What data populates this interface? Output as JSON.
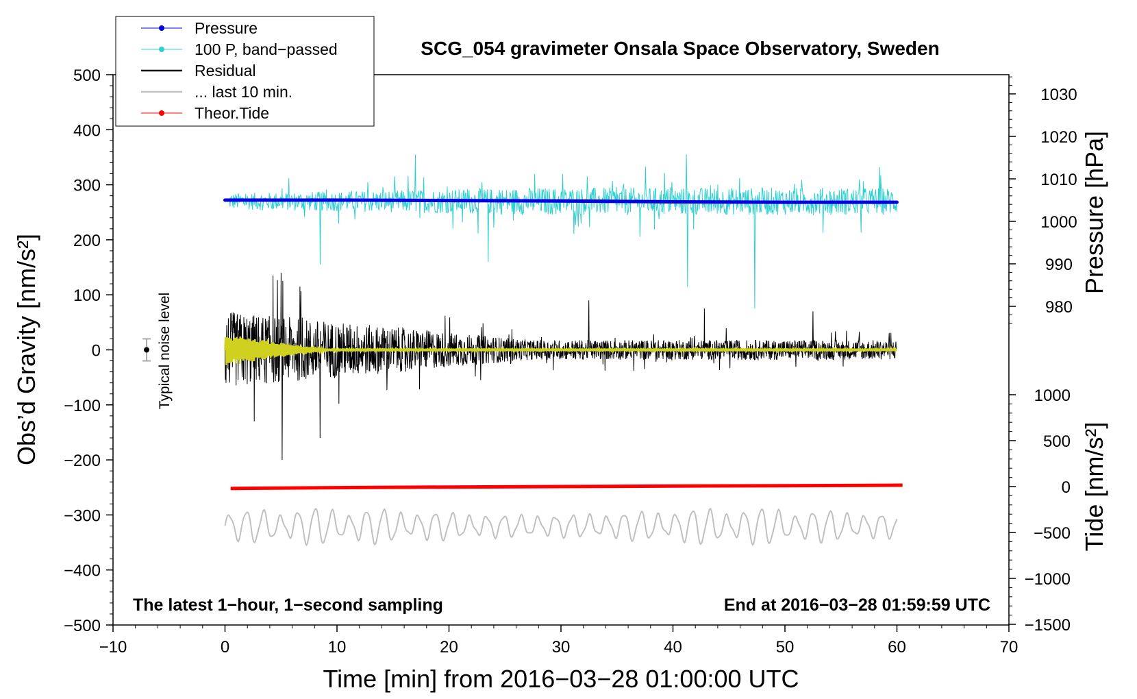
{
  "chart_data": {
    "type": "line",
    "title": "SCG_054 gravimeter Onsala Space Observatory, Sweden",
    "xlabel": "Time [min] from 2016−03−28 01:00:00 UTC",
    "ylabel_left": "Obs’d Gravity [nm/s²]",
    "ylabel_right_top": "Pressure [hPa]",
    "ylabel_right_bottom": "Tide [nm/s²]",
    "xlim": [
      -10,
      70
    ],
    "ylim_left": [
      -500,
      500
    ],
    "pressure_axis": {
      "visible_range": [
        976,
        1034
      ]
    },
    "tide_axis": {
      "visible_range": [
        -1500,
        1050
      ]
    },
    "x_ticks": [
      "−10",
      "0",
      "10",
      "20",
      "30",
      "40",
      "50",
      "60",
      "70"
    ],
    "x_tick_values": [
      -10,
      0,
      10,
      20,
      30,
      40,
      50,
      60,
      70
    ],
    "y_left_ticks": [
      "−500",
      "−400",
      "−300",
      "−200",
      "−100",
      "0",
      "100",
      "200",
      "300",
      "400",
      "500"
    ],
    "y_left_tick_values": [
      -500,
      -400,
      -300,
      -200,
      -100,
      0,
      100,
      200,
      300,
      400,
      500
    ],
    "pressure_ticks": [
      "980",
      "990",
      "1000",
      "1010",
      "1020",
      "1030"
    ],
    "pressure_tick_values": [
      980,
      990,
      1000,
      1010,
      1020,
      1030
    ],
    "tide_ticks": [
      "−1500",
      "−1000",
      "−500",
      "0",
      "500",
      "1000"
    ],
    "tide_tick_values": [
      -1500,
      -1000,
      -500,
      0,
      500,
      1000
    ],
    "legend": {
      "placement": "top-left",
      "entries": [
        {
          "label": "Pressure",
          "color": "#0000e0",
          "marker": true
        },
        {
          "label": "100 P, band−passed",
          "color": "#30d0d0",
          "marker": true
        },
        {
          "label": "Residual",
          "color": "#000000",
          "marker": false
        },
        {
          "label": "... last 10 min.",
          "color": "#c0c0c0",
          "marker": false
        },
        {
          "label": "Theor.Tide",
          "color": "#ff0000",
          "marker": true
        }
      ]
    },
    "annotations": {
      "bottom_left": "The latest 1−hour, 1−second sampling",
      "bottom_right": "End at 2016−03−28 01:59:59 UTC",
      "noise_label": "Typical noise level"
    },
    "noise_bar": {
      "x": -7,
      "center": 0,
      "half_range": 20
    },
    "series": [
      {
        "name": "Pressure",
        "axis": "pressure",
        "color": "#0000e0",
        "x": [
          0,
          10,
          20,
          30,
          40,
          50,
          60
        ],
        "values": [
          1005.0,
          1005.0,
          1004.9,
          1004.8,
          1004.6,
          1004.5,
          1004.5
        ]
      },
      {
        "name": "100 P, band−passed",
        "axis": "left",
        "color": "#30d0d0",
        "offset": 270,
        "x_range": [
          0.3,
          60
        ],
        "amplitude_start": 15,
        "amplitude_end": 25,
        "extremes": [
          [
            17.0,
            355
          ],
          [
            41.2,
            355
          ],
          [
            41.3,
            115
          ],
          [
            47.3,
            75
          ],
          [
            8.5,
            155
          ],
          [
            23.5,
            160
          ]
        ]
      },
      {
        "name": "Residual",
        "axis": "left",
        "color": "#000000",
        "offset": 0,
        "x_range": [
          0,
          60
        ],
        "amplitude_start": 70,
        "amplitude_end": 18,
        "extremes": [
          [
            5.0,
            140
          ],
          [
            5.1,
            -200
          ],
          [
            4.3,
            135
          ],
          [
            8.5,
            -160
          ],
          [
            2.6,
            -130
          ],
          [
            32.5,
            90
          ],
          [
            42.8,
            75
          ],
          [
            52.5,
            70
          ]
        ]
      },
      {
        "name": "Residual (filtered)",
        "axis": "left",
        "color": "#d0d020",
        "offset": 0,
        "x_range": [
          0,
          60
        ],
        "amplitude_start": 30,
        "amplitude_end": 2
      },
      {
        "name": "Theor.Tide",
        "axis": "tide",
        "color": "#ff0000",
        "x": [
          0.5,
          10,
          20,
          30,
          40,
          50,
          60.5
        ],
        "values": [
          -20,
          -12,
          -5,
          0,
          5,
          10,
          15
        ]
      },
      {
        "name": "... last 10 min.",
        "axis": "left",
        "color": "#c0c0c0",
        "offset": -320,
        "x_range": [
          0,
          60
        ],
        "amplitude": 25
      }
    ]
  }
}
